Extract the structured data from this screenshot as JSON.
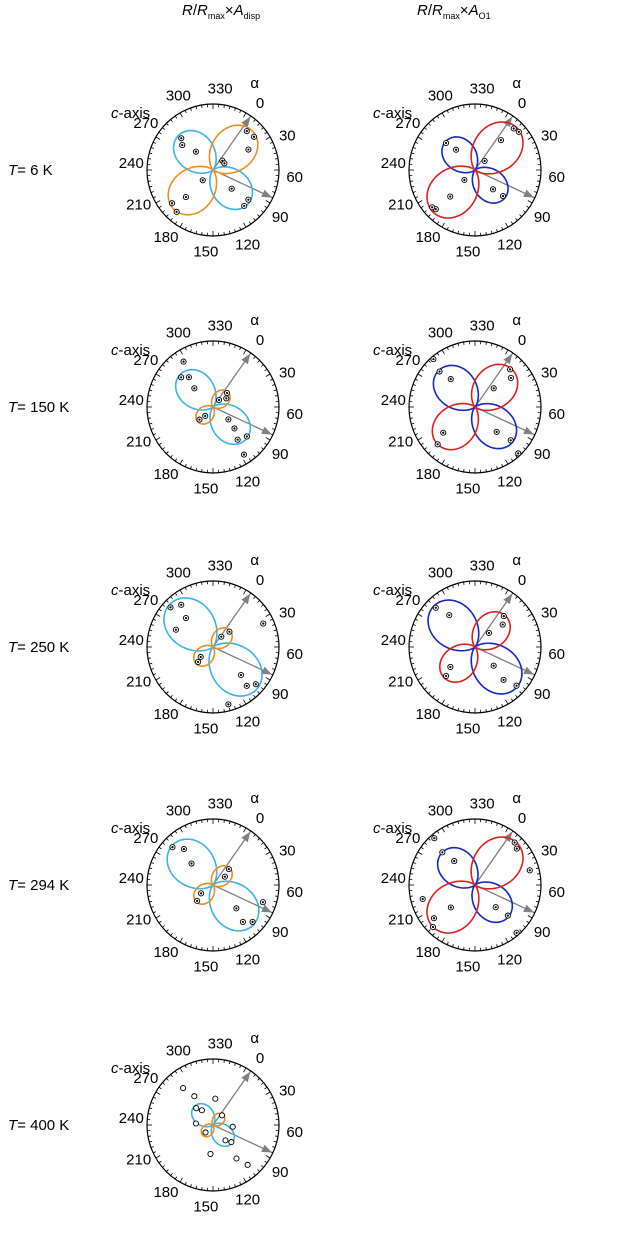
{
  "columns": [
    {
      "r": "R",
      "slash": "/",
      "rmax": "R",
      "rmax_sub": "max",
      "times": "×",
      "a": "A",
      "a_sub": "disp"
    },
    {
      "r": "R",
      "slash": "/",
      "rmax": "R",
      "rmax_sub": "max",
      "times": "×",
      "a": "A",
      "a_sub": "O1"
    }
  ],
  "row_labels": [
    {
      "t": "T",
      "value": "= 6 K"
    },
    {
      "t": "T",
      "value": "= 150 K"
    },
    {
      "t": "T",
      "value": "= 250 K"
    },
    {
      "t": "T",
      "value": "= 294 K"
    },
    {
      "t": "T",
      "value": "= 400 K"
    }
  ],
  "axis_labels": {
    "c_axis": "c-axis",
    "alpha": "α"
  },
  "angle_ticks": [
    "0",
    "30",
    "60",
    "90",
    "120",
    "150",
    "180",
    "210",
    "240",
    "270",
    "300",
    "330"
  ],
  "colors": {
    "disp_lobe_a": "#f28c1e",
    "disp_lobe_b": "#3ab4e8",
    "o1_lobe_a": "#e02020",
    "o1_lobe_b": "#1428c8",
    "arrow": "#808080"
  },
  "chart_data": [
    {
      "type": "scatter",
      "projection": "polar",
      "column": "A_disp",
      "temperature": "6 K",
      "angle_zero_deg": 55,
      "c_axis_angle_deg": 80,
      "a_lobe_axis_deg": 10,
      "b_lobe_axis_deg": 100,
      "lobe_a_amp": 0.84,
      "lobe_b_amp": 0.74,
      "points": [
        {
          "r": 0.78,
          "ang": 6
        },
        {
          "r": 0.8,
          "ang": 16
        },
        {
          "r": 0.62,
          "ang": 25
        },
        {
          "r": 0.2,
          "ang": 10
        },
        {
          "r": 0.2,
          "ang": 25
        },
        {
          "r": 0.84,
          "ang": 186
        },
        {
          "r": 0.8,
          "ang": 196
        },
        {
          "r": 0.58,
          "ang": 190
        },
        {
          "r": 0.22,
          "ang": 190
        },
        {
          "r": 0.7,
          "ang": 95
        },
        {
          "r": 0.72,
          "ang": 104
        },
        {
          "r": 0.4,
          "ang": 100
        },
        {
          "r": 0.68,
          "ang": 280
        },
        {
          "r": 0.6,
          "ang": 274
        },
        {
          "r": 0.38,
          "ang": 282
        }
      ]
    },
    {
      "type": "scatter",
      "projection": "polar",
      "column": "A_O1",
      "temperature": "6 K",
      "angle_zero_deg": 55,
      "c_axis_angle_deg": 80,
      "a_lobe_axis_deg": 10,
      "b_lobe_axis_deg": 100,
      "lobe_a_amp": 0.9,
      "lobe_b_amp": 0.62,
      "points": [
        {
          "r": 0.86,
          "ang": 8
        },
        {
          "r": 0.88,
          "ang": 14
        },
        {
          "r": 0.6,
          "ang": 6
        },
        {
          "r": 0.2,
          "ang": 12
        },
        {
          "r": 0.84,
          "ang": 190
        },
        {
          "r": 0.86,
          "ang": 194
        },
        {
          "r": 0.55,
          "ang": 188
        },
        {
          "r": 0.22,
          "ang": 192
        },
        {
          "r": 0.58,
          "ang": 98
        },
        {
          "r": 0.4,
          "ang": 102
        },
        {
          "r": 0.6,
          "ang": 278
        },
        {
          "r": 0.42,
          "ang": 282
        }
      ]
    },
    {
      "type": "scatter",
      "projection": "polar",
      "column": "A_disp",
      "temperature": "150 K",
      "angle_zero_deg": 55,
      "c_axis_angle_deg": 80,
      "a_lobe_axis_deg": 10,
      "b_lobe_axis_deg": 100,
      "lobe_a_amp": 0.32,
      "lobe_b_amp": 0.7,
      "points": [
        {
          "r": 0.3,
          "ang": 10
        },
        {
          "r": 0.24,
          "ang": 22
        },
        {
          "r": 0.14,
          "ang": 6
        },
        {
          "r": 0.28,
          "ang": 192
        },
        {
          "r": 0.18,
          "ang": 186
        },
        {
          "r": 0.68,
          "ang": 96
        },
        {
          "r": 0.62,
          "ang": 108
        },
        {
          "r": 0.46,
          "ang": 100
        },
        {
          "r": 0.3,
          "ang": 94
        },
        {
          "r": 0.66,
          "ang": 278
        },
        {
          "r": 0.58,
          "ang": 286
        },
        {
          "r": 0.4,
          "ang": 280
        },
        {
          "r": 0.86,
          "ang": 112
        },
        {
          "r": 0.82,
          "ang": 292
        }
      ]
    },
    {
      "type": "scatter",
      "projection": "polar",
      "column": "A_O1",
      "temperature": "150 K",
      "angle_zero_deg": 55,
      "c_axis_angle_deg": 80,
      "a_lobe_axis_deg": 10,
      "b_lobe_axis_deg": 100,
      "lobe_a_amp": 0.8,
      "lobe_b_amp": 0.78,
      "points": [
        {
          "r": 0.78,
          "ang": 8
        },
        {
          "r": 0.7,
          "ang": 16
        },
        {
          "r": 0.4,
          "ang": 10
        },
        {
          "r": 0.8,
          "ang": 190
        },
        {
          "r": 0.62,
          "ang": 196
        },
        {
          "r": 0.74,
          "ang": 98
        },
        {
          "r": 0.5,
          "ang": 104
        },
        {
          "r": 0.76,
          "ang": 280
        },
        {
          "r": 0.56,
          "ang": 284
        },
        {
          "r": 0.96,
          "ang": 102
        },
        {
          "r": 0.96,
          "ang": 284
        }
      ]
    },
    {
      "type": "scatter",
      "projection": "polar",
      "column": "A_disp",
      "temperature": "250 K",
      "angle_zero_deg": 55,
      "c_axis_angle_deg": 80,
      "a_lobe_axis_deg": 10,
      "b_lobe_axis_deg": 100,
      "lobe_a_amp": 0.36,
      "lobe_b_amp": 0.92,
      "points": [
        {
          "r": 0.34,
          "ang": 12
        },
        {
          "r": 0.2,
          "ang": 4
        },
        {
          "r": 0.32,
          "ang": 190
        },
        {
          "r": 0.24,
          "ang": 196
        },
        {
          "r": 0.86,
          "ang": 96
        },
        {
          "r": 0.78,
          "ang": 104
        },
        {
          "r": 0.6,
          "ang": 100
        },
        {
          "r": 0.88,
          "ang": 278
        },
        {
          "r": 0.8,
          "ang": 288
        },
        {
          "r": 0.6,
          "ang": 282
        },
        {
          "r": 0.9,
          "ang": 130
        },
        {
          "r": 0.62,
          "ang": 260
        },
        {
          "r": 0.84,
          "ang": 30
        }
      ]
    },
    {
      "type": "scatter",
      "projection": "polar",
      "column": "A_O1",
      "temperature": "250 K",
      "angle_zero_deg": 55,
      "c_axis_angle_deg": 80,
      "a_lobe_axis_deg": 10,
      "b_lobe_axis_deg": 100,
      "lobe_a_amp": 0.66,
      "lobe_b_amp": 0.88,
      "points": [
        {
          "r": 0.64,
          "ang": 8
        },
        {
          "r": 0.54,
          "ang": 16
        },
        {
          "r": 0.3,
          "ang": 10
        },
        {
          "r": 0.62,
          "ang": 190
        },
        {
          "r": 0.48,
          "ang": 196
        },
        {
          "r": 0.86,
          "ang": 98
        },
        {
          "r": 0.66,
          "ang": 104
        },
        {
          "r": 0.4,
          "ang": 100
        },
        {
          "r": 0.84,
          "ang": 280
        },
        {
          "r": 0.62,
          "ang": 286
        }
      ]
    },
    {
      "type": "scatter",
      "projection": "polar",
      "column": "A_disp",
      "temperature": "294 K",
      "angle_zero_deg": 55,
      "c_axis_angle_deg": 80,
      "a_lobe_axis_deg": 10,
      "b_lobe_axis_deg": 100,
      "lobe_a_amp": 0.36,
      "lobe_b_amp": 0.86,
      "points": [
        {
          "r": 0.34,
          "ang": 10
        },
        {
          "r": 0.22,
          "ang": 20
        },
        {
          "r": 0.34,
          "ang": 190
        },
        {
          "r": 0.22,
          "ang": 200
        },
        {
          "r": 0.82,
          "ang": 98
        },
        {
          "r": 0.72,
          "ang": 106
        },
        {
          "r": 0.5,
          "ang": 100
        },
        {
          "r": 0.84,
          "ang": 278
        },
        {
          "r": 0.7,
          "ang": 286
        },
        {
          "r": 0.46,
          "ang": 280
        },
        {
          "r": 0.8,
          "ang": 74
        }
      ]
    },
    {
      "type": "scatter",
      "projection": "polar",
      "column": "A_O1",
      "temperature": "294 K",
      "angle_zero_deg": 55,
      "c_axis_angle_deg": 80,
      "a_lobe_axis_deg": 10,
      "b_lobe_axis_deg": 100,
      "lobe_a_amp": 0.9,
      "lobe_b_amp": 0.7,
      "points": [
        {
          "r": 0.88,
          "ang": 8
        },
        {
          "r": 0.84,
          "ang": 14
        },
        {
          "r": 0.9,
          "ang": 190
        },
        {
          "r": 0.8,
          "ang": 196
        },
        {
          "r": 0.5,
          "ang": 192
        },
        {
          "r": 0.68,
          "ang": 98
        },
        {
          "r": 0.46,
          "ang": 102
        },
        {
          "r": 0.7,
          "ang": 280
        },
        {
          "r": 0.48,
          "ang": 284
        },
        {
          "r": 0.96,
          "ang": 104
        },
        {
          "r": 0.94,
          "ang": 284
        },
        {
          "r": 0.86,
          "ang": 40
        },
        {
          "r": 0.82,
          "ang": 220
        }
      ]
    },
    {
      "type": "scatter",
      "projection": "polar",
      "column": "A_disp",
      "temperature": "400 K",
      "angle_zero_deg": 55,
      "c_axis_angle_deg": 80,
      "a_lobe_axis_deg": 10,
      "b_lobe_axis_deg": 100,
      "lobe_a_amp": 0.22,
      "lobe_b_amp": 0.4,
      "points": [
        {
          "r": 0.2,
          "ang": 8
        },
        {
          "r": 0.16,
          "ang": 190
        },
        {
          "r": 0.38,
          "ang": 98
        },
        {
          "r": 0.3,
          "ang": 106
        },
        {
          "r": 0.36,
          "ang": 280
        },
        {
          "r": 0.28,
          "ang": 288
        },
        {
          "r": 0.8,
          "ang": 104
        },
        {
          "r": 0.62,
          "ang": 110
        },
        {
          "r": 0.72,
          "ang": 286
        },
        {
          "r": 0.52,
          "ang": 292
        },
        {
          "r": 0.3,
          "ang": 60
        },
        {
          "r": 0.26,
          "ang": 240
        },
        {
          "r": 0.44,
          "ang": 150
        },
        {
          "r": 0.4,
          "ang": 330
        }
      ]
    }
  ]
}
